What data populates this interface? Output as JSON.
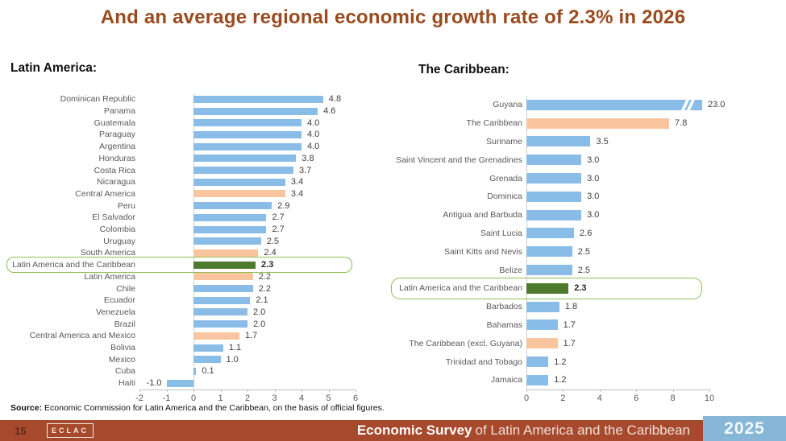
{
  "title": "And an average regional economic growth rate of 2.3% in 2026",
  "source": {
    "label": "Source:",
    "text": " Economic Commission for Latin America and the Caribbean, on the basis of official figures."
  },
  "footer": {
    "page_number": "15",
    "logo": "ECLAC",
    "survey_bold": "Economic Survey",
    "survey_rest": "of Latin America and the Caribbean",
    "year": "2025"
  },
  "colors": {
    "title": "#9A4A1E",
    "bar_blue": "#89BCE6",
    "bar_orange": "#F8C59E",
    "bar_green": "#4E7A2D",
    "highlight_border": "#8CC152",
    "footer_bg": "#A7492C",
    "year_bg": "#87B6D6"
  },
  "chart_data": [
    {
      "type": "bar",
      "orientation": "horizontal",
      "heading": "Latin America:",
      "xlabel": "",
      "ylabel": "",
      "xlim": [
        -2,
        6
      ],
      "ticks": [
        -2,
        -1,
        0,
        1,
        2,
        3,
        4,
        5,
        6
      ],
      "grid": false,
      "bars": [
        {
          "label": "Dominican Republic",
          "value": 4.8,
          "color": "blue"
        },
        {
          "label": "Panama",
          "value": 4.6,
          "color": "blue"
        },
        {
          "label": "Guatemala",
          "value": 4.0,
          "color": "blue"
        },
        {
          "label": "Paraguay",
          "value": 4.0,
          "color": "blue"
        },
        {
          "label": "Argentina",
          "value": 4.0,
          "color": "blue"
        },
        {
          "label": "Honduras",
          "value": 3.8,
          "color": "blue"
        },
        {
          "label": "Costa Rica",
          "value": 3.7,
          "color": "blue"
        },
        {
          "label": "Nicaragua",
          "value": 3.4,
          "color": "blue"
        },
        {
          "label": "Central America",
          "value": 3.4,
          "color": "orange"
        },
        {
          "label": "Peru",
          "value": 2.9,
          "color": "blue"
        },
        {
          "label": "El Salvador",
          "value": 2.7,
          "color": "blue"
        },
        {
          "label": "Colombia",
          "value": 2.7,
          "color": "blue"
        },
        {
          "label": "Uruguay",
          "value": 2.5,
          "color": "blue"
        },
        {
          "label": "South America",
          "value": 2.4,
          "color": "orange"
        },
        {
          "label": "Latin America and the Caribbean",
          "value": 2.3,
          "color": "green",
          "highlight": true
        },
        {
          "label": "Latin America",
          "value": 2.2,
          "color": "orange"
        },
        {
          "label": "Chile",
          "value": 2.2,
          "color": "blue"
        },
        {
          "label": "Ecuador",
          "value": 2.1,
          "color": "blue"
        },
        {
          "label": "Venezuela",
          "value": 2.0,
          "color": "blue"
        },
        {
          "label": "Brazil",
          "value": 2.0,
          "color": "blue"
        },
        {
          "label": "Central America and Mexico",
          "value": 1.7,
          "color": "orange"
        },
        {
          "label": "Bolivia",
          "value": 1.1,
          "color": "blue"
        },
        {
          "label": "Mexico",
          "value": 1.0,
          "color": "blue"
        },
        {
          "label": "Cuba",
          "value": 0.1,
          "color": "blue"
        },
        {
          "label": "Haiti",
          "value": -1.0,
          "color": "blue"
        }
      ]
    },
    {
      "type": "bar",
      "orientation": "horizontal",
      "heading": "The Caribbean:",
      "xlabel": "",
      "ylabel": "",
      "xlim": [
        0,
        10
      ],
      "ticks": [
        0,
        2,
        4,
        6,
        8,
        10
      ],
      "grid": false,
      "axis_break_on_first_bar": true,
      "bars": [
        {
          "label": "Guyana",
          "value": 23.0,
          "color": "blue",
          "clipped": true
        },
        {
          "label": "The Caribbean",
          "value": 7.8,
          "color": "orange"
        },
        {
          "label": "Suriname",
          "value": 3.5,
          "color": "blue"
        },
        {
          "label": "Saint Vincent and the Grenadines",
          "value": 3.0,
          "color": "blue"
        },
        {
          "label": "Grenada",
          "value": 3.0,
          "color": "blue"
        },
        {
          "label": "Dominica",
          "value": 3.0,
          "color": "blue"
        },
        {
          "label": "Antigua and Barbuda",
          "value": 3.0,
          "color": "blue"
        },
        {
          "label": "Saint Lucia",
          "value": 2.6,
          "color": "blue"
        },
        {
          "label": "Saint Kitts and Nevis",
          "value": 2.5,
          "color": "blue"
        },
        {
          "label": "Belize",
          "value": 2.5,
          "color": "blue"
        },
        {
          "label": "Latin America and the Caribbean",
          "value": 2.3,
          "color": "green",
          "highlight": true
        },
        {
          "label": "Barbados",
          "value": 1.8,
          "color": "blue"
        },
        {
          "label": "Bahamas",
          "value": 1.7,
          "color": "blue"
        },
        {
          "label": "The Caribbean (excl. Guyana)",
          "value": 1.7,
          "color": "orange"
        },
        {
          "label": "Trinidad and Tobago",
          "value": 1.2,
          "color": "blue"
        },
        {
          "label": "Jamaica",
          "value": 1.2,
          "color": "blue"
        }
      ]
    }
  ]
}
